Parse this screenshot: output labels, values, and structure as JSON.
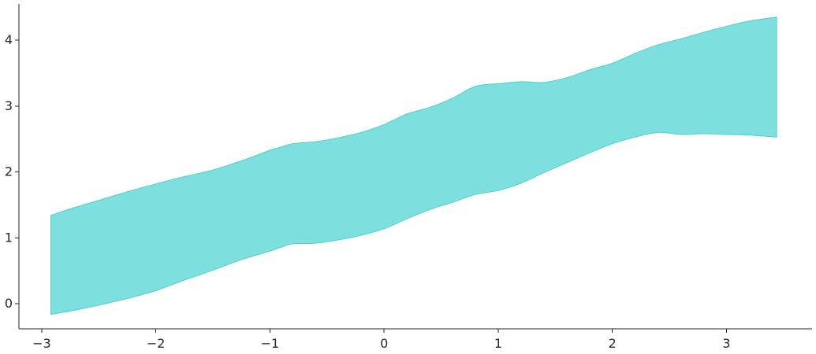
{
  "chart_data": {
    "type": "area",
    "title": "",
    "xlabel": "",
    "ylabel": "",
    "xlim": [
      -3.2,
      3.75
    ],
    "ylim": [
      -0.38,
      4.55
    ],
    "grid": false,
    "fill_color": "#7ddfde",
    "edge_color": "#4fd0cf",
    "x_ticks": [
      -3,
      -2,
      -1,
      0,
      1,
      2,
      3
    ],
    "x_tick_labels": [
      "−3",
      "−2",
      "−1",
      "0",
      "1",
      "2",
      "3"
    ],
    "y_ticks": [
      0,
      1,
      2,
      3,
      4
    ],
    "y_tick_labels": [
      "0",
      "1",
      "2",
      "3",
      "4"
    ],
    "series": [
      {
        "x": [
          -2.92,
          -2.75,
          -2.5,
          -2.25,
          -2.0,
          -1.75,
          -1.5,
          -1.25,
          -1.0,
          -0.9,
          -0.8,
          -0.6,
          -0.4,
          -0.2,
          0.0,
          0.2,
          0.4,
          0.6,
          0.8,
          1.0,
          1.2,
          1.4,
          1.6,
          1.8,
          2.0,
          2.2,
          2.4,
          2.6,
          2.8,
          3.0,
          3.2,
          3.44
        ],
        "upper": [
          1.34,
          1.44,
          1.57,
          1.7,
          1.82,
          1.93,
          2.03,
          2.17,
          2.33,
          2.38,
          2.43,
          2.46,
          2.52,
          2.6,
          2.72,
          2.88,
          2.98,
          3.12,
          3.3,
          3.34,
          3.37,
          3.36,
          3.43,
          3.55,
          3.65,
          3.8,
          3.93,
          4.02,
          4.12,
          4.21,
          4.29,
          4.35
        ],
        "lower": [
          -0.16,
          -0.11,
          -0.02,
          0.08,
          0.2,
          0.36,
          0.51,
          0.67,
          0.8,
          0.86,
          0.91,
          0.92,
          0.97,
          1.04,
          1.14,
          1.29,
          1.43,
          1.54,
          1.66,
          1.72,
          1.83,
          1.99,
          2.14,
          2.29,
          2.43,
          2.53,
          2.6,
          2.57,
          2.58,
          2.57,
          2.56,
          2.53
        ]
      }
    ]
  }
}
